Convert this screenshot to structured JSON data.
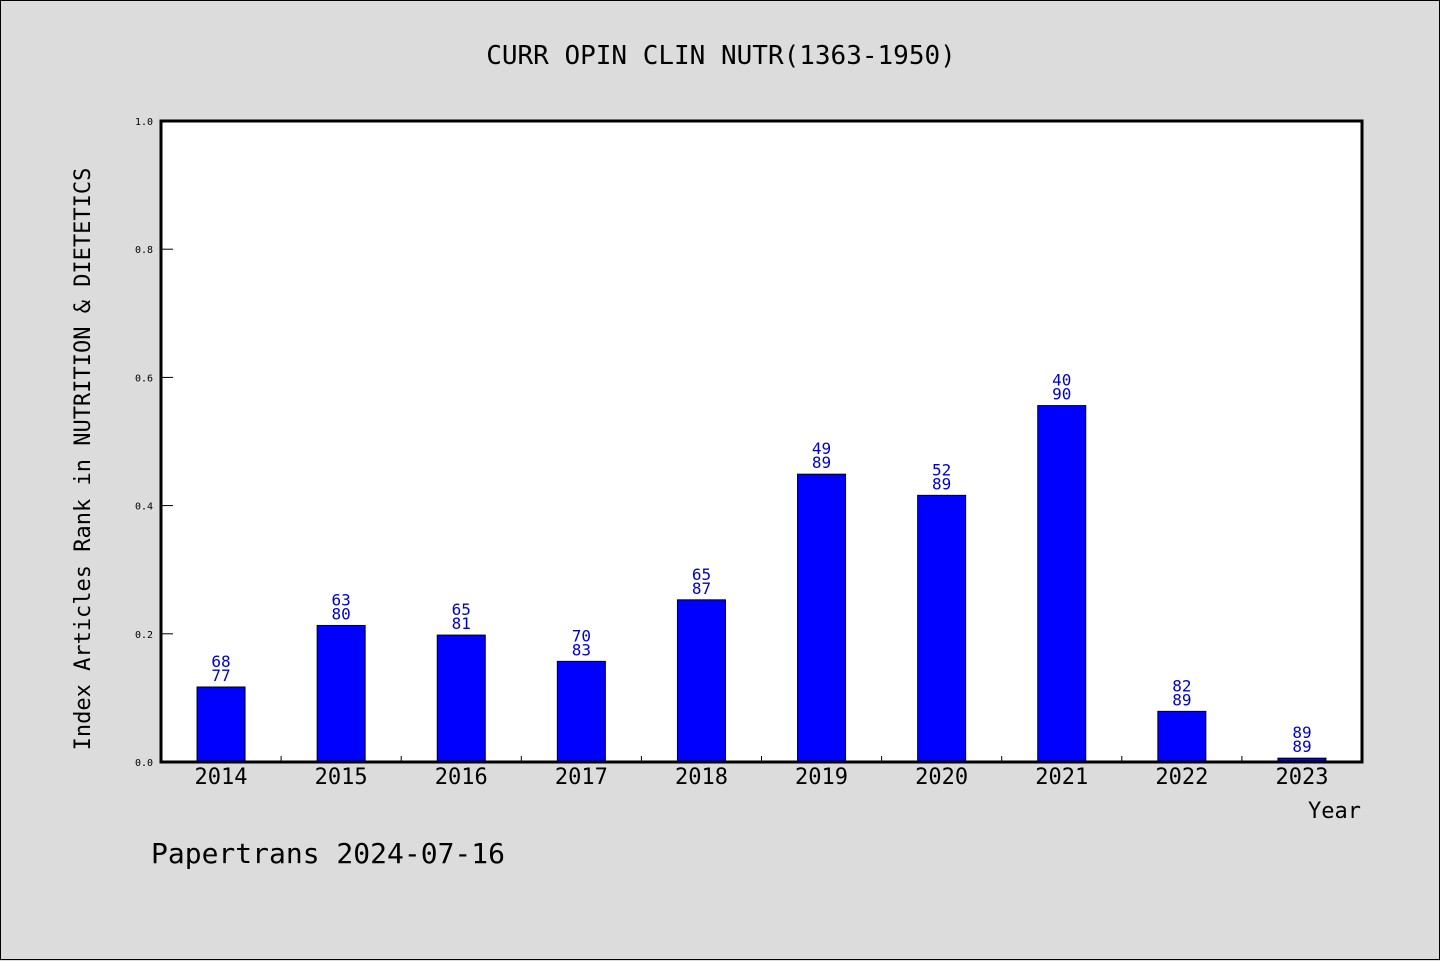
{
  "chart_data": {
    "type": "bar",
    "title": "CURR OPIN CLIN NUTR(1363-1950)",
    "xlabel": "Year",
    "ylabel": "Index Articles Rank in NUTRITION & DIETETICS",
    "ylim": [
      0,
      1.0
    ],
    "yticks": [
      "0.0",
      "0.2",
      "0.4",
      "0.6",
      "0.8",
      "1.0"
    ],
    "ytick_values": [
      0,
      0.2,
      0.4,
      0.6,
      0.8,
      1.0
    ],
    "grid": false,
    "categories": [
      "2014",
      "2015",
      "2016",
      "2017",
      "2018",
      "2019",
      "2020",
      "2021",
      "2022",
      "2023"
    ],
    "values": [
      0.117,
      0.213,
      0.198,
      0.157,
      0.253,
      0.449,
      0.416,
      0.556,
      0.079,
      0.006
    ],
    "labels_top": [
      "68",
      "63",
      "65",
      "70",
      "65",
      "49",
      "52",
      "40",
      "82",
      "89"
    ],
    "labels_bottom": [
      "77",
      "80",
      "81",
      "83",
      "87",
      "89",
      "89",
      "90",
      "89",
      "89"
    ],
    "bar_color": "#0000ff",
    "label_color": "#0000cc"
  },
  "footer": "Papertrans 2024-07-16"
}
